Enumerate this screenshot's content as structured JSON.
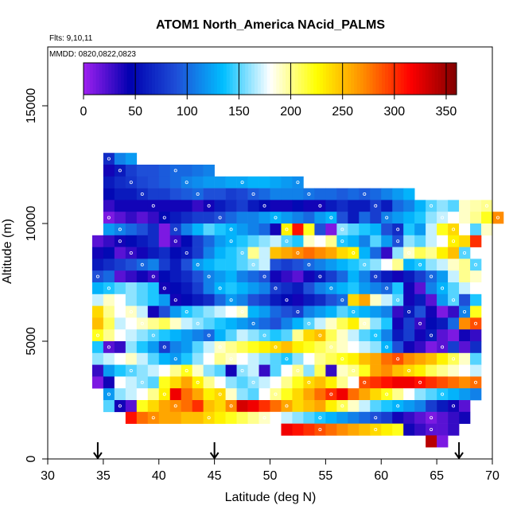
{
  "chart_data": {
    "type": "heatmap",
    "title": "ATOM1 North_America NAcid_PALMS",
    "flights_note": "Flts: 9,10,11",
    "dates_note": "MMDD: 0820,0822,0823",
    "xlabel": "Latitude (deg N)",
    "ylabel": "Altitude (m)",
    "xlim": [
      30,
      70
    ],
    "ylim": [
      0,
      17500
    ],
    "x_ticks": [
      "30",
      "35",
      "40",
      "45",
      "50",
      "55",
      "60",
      "65",
      "70"
    ],
    "y_ticks": [
      "0",
      "5000",
      "10000",
      "15000"
    ],
    "colorbar": {
      "range": [
        0,
        360
      ],
      "ticks": [
        "0",
        "50",
        "100",
        "150",
        "200",
        "250",
        "300",
        "350"
      ],
      "colors": [
        "#a020f0",
        "#0000b0",
        "#1e4fd8",
        "#00bfff",
        "#ffffff",
        "#ffff00",
        "#ff8c00",
        "#ff0000",
        "#800000"
      ]
    },
    "grid": false,
    "cell_size": {
      "lat": 1.0,
      "alt": 500
    },
    "latitude_markers": [
      34.5,
      45.0,
      67.0
    ],
    "bands": [
      {
        "alt": 12750,
        "lat_start": 35,
        "values": [
          70,
          110,
          120
        ]
      },
      {
        "alt": 12250,
        "lat_start": 35,
        "values": [
          40,
          60,
          80,
          90,
          90,
          95,
          100,
          100,
          105,
          110
        ]
      },
      {
        "alt": 11750,
        "lat_start": 35,
        "values": [
          60,
          70,
          75,
          85,
          90,
          95,
          100,
          110,
          115,
          120,
          120,
          125,
          125,
          130,
          130,
          125,
          120,
          115
        ]
      },
      {
        "alt": 11250,
        "lat_start": 35,
        "values": [
          50,
          60,
          60,
          70,
          80,
          80,
          90,
          95,
          100,
          90,
          90,
          80,
          85,
          95,
          100,
          110,
          110,
          110,
          105,
          100,
          100,
          95,
          100,
          95,
          100,
          110,
          120,
          130
        ]
      },
      {
        "alt": 10750,
        "lat_start": 35,
        "values": [
          30,
          40,
          40,
          40,
          40,
          40,
          40,
          40,
          30,
          40,
          60,
          70,
          80,
          60,
          50,
          40,
          40,
          50,
          40,
          40,
          60,
          70,
          60,
          60,
          80,
          60,
          100,
          110,
          130,
          150,
          160,
          150,
          190,
          195,
          200
        ]
      },
      {
        "alt": 10250,
        "lat_start": 35,
        "values": [
          10,
          20,
          30,
          20,
          30,
          50,
          60,
          70,
          80,
          80,
          90,
          100,
          110,
          110,
          120,
          130,
          120,
          110,
          100,
          120,
          130,
          90,
          60,
          100,
          80,
          110,
          120,
          130,
          140,
          160,
          170,
          180,
          190,
          200,
          220,
          270
        ]
      },
      {
        "alt": 9750,
        "lat_start": 35,
        "values": [
          120,
          110,
          100,
          90,
          70,
          10,
          80,
          110,
          130,
          150,
          140,
          130,
          120,
          110,
          100,
          40,
          230,
          310,
          220,
          90,
          10,
          160,
          150,
          140,
          130,
          90,
          70,
          140,
          120,
          170,
          220,
          240,
          180,
          150,
          190
        ]
      },
      {
        "alt": 9250,
        "lat_start": 34,
        "values": [
          20,
          30,
          40,
          50,
          60,
          70,
          10,
          30,
          50,
          80,
          100,
          120,
          130,
          140,
          150,
          160,
          170,
          150,
          140,
          190,
          180,
          200,
          140,
          130,
          110,
          150,
          120,
          90,
          160,
          150,
          170,
          180,
          230,
          240,
          300
        ]
      },
      {
        "alt": 8750,
        "lat_start": 34,
        "values": [
          40,
          50,
          20,
          30,
          40,
          60,
          70,
          50,
          60,
          80,
          110,
          130,
          140,
          150,
          200,
          170,
          250,
          260,
          270,
          280,
          270,
          260,
          240,
          230,
          130,
          100,
          30,
          160,
          190,
          210,
          200,
          230,
          250,
          150
        ]
      },
      {
        "alt": 8250,
        "lat_start": 34,
        "values": [
          60,
          70,
          80,
          90,
          100,
          110,
          80,
          60,
          90,
          120,
          130,
          140,
          140,
          150,
          160,
          170,
          90,
          80,
          90,
          100,
          110,
          120,
          130,
          140,
          150,
          160,
          180,
          200,
          130,
          140,
          160,
          170,
          190,
          200,
          150
        ]
      },
      {
        "alt": 7750,
        "lat_start": 34,
        "values": [
          90,
          100,
          20,
          30,
          40,
          30,
          50,
          60,
          70,
          90,
          110,
          120,
          130,
          110,
          100,
          90,
          40,
          30,
          20,
          40,
          60,
          80,
          100,
          130,
          110,
          80,
          60,
          40,
          60,
          80,
          100,
          120,
          170,
          200,
          190
        ]
      },
      {
        "alt": 7250,
        "lat_start": 34,
        "values": [
          130,
          140,
          150,
          160,
          150,
          140,
          40,
          50,
          60,
          80,
          110,
          130,
          140,
          130,
          120,
          110,
          80,
          70,
          60,
          90,
          110,
          120,
          130,
          140,
          120,
          110,
          100,
          140,
          40,
          20,
          110,
          130,
          150,
          170,
          180
        ]
      },
      {
        "alt": 6750,
        "lat_start": 34,
        "values": [
          170,
          190,
          180,
          160,
          150,
          140,
          120,
          40,
          50,
          60,
          70,
          100,
          120,
          110,
          90,
          80,
          60,
          50,
          40,
          60,
          70,
          90,
          100,
          240,
          260,
          190,
          170,
          150,
          40,
          60,
          20,
          120,
          150,
          90,
          140
        ]
      },
      {
        "alt": 6250,
        "lat_start": 34,
        "values": [
          240,
          200,
          180,
          190,
          170,
          40,
          90,
          120,
          140,
          150,
          160,
          170,
          180,
          190,
          130,
          120,
          100,
          90,
          80,
          110,
          120,
          130,
          150,
          140,
          130,
          120,
          110,
          30,
          60,
          90,
          40,
          10,
          30,
          110,
          220
        ]
      },
      {
        "alt": 5750,
        "lat_start": 34,
        "values": [
          250,
          210,
          170,
          180,
          190,
          200,
          210,
          190,
          170,
          160,
          150,
          140,
          130,
          120,
          110,
          100,
          90,
          110,
          130,
          150,
          170,
          190,
          210,
          230,
          190,
          160,
          140,
          40,
          80,
          30,
          50,
          60,
          100,
          270,
          290
        ]
      },
      {
        "alt": 5250,
        "lat_start": 34,
        "values": [
          220,
          200,
          180,
          170,
          160,
          150,
          140,
          130,
          120,
          110,
          100,
          130,
          150,
          170,
          160,
          150,
          140,
          150,
          200,
          240,
          250,
          210,
          190,
          170,
          150,
          140,
          110,
          60,
          80,
          40,
          60,
          20,
          10,
          40,
          30
        ]
      },
      {
        "alt": 4750,
        "lat_start": 34,
        "values": [
          140,
          20,
          30,
          160,
          140,
          120,
          80,
          110,
          120,
          150,
          170,
          190,
          200,
          210,
          220,
          230,
          240,
          250,
          230,
          220,
          210,
          200,
          190,
          180,
          170,
          160,
          130,
          90,
          40,
          30,
          10,
          20,
          80,
          20,
          70
        ]
      },
      {
        "alt": 4250,
        "lat_start": 34,
        "values": [
          160,
          170,
          180,
          190,
          170,
          150,
          130,
          120,
          140,
          160,
          180,
          200,
          190,
          180,
          170,
          160,
          150,
          140,
          160,
          180,
          200,
          210,
          220,
          230,
          250,
          260,
          280,
          290,
          270,
          260,
          250,
          230,
          210,
          190,
          150
        ]
      },
      {
        "alt": 3750,
        "lat_start": 34,
        "values": [
          30,
          120,
          140,
          150,
          160,
          170,
          180,
          200,
          220,
          190,
          160,
          150,
          40,
          160,
          170,
          30,
          150,
          180,
          200,
          160,
          210,
          30,
          190,
          200,
          220,
          260,
          270,
          250,
          240,
          230,
          210,
          200,
          190,
          180,
          170
        ]
      },
      {
        "alt": 3250,
        "lat_start": 34,
        "values": [
          10,
          40,
          180,
          170,
          160,
          150,
          220,
          240,
          260,
          230,
          200,
          180,
          160,
          150,
          160,
          170,
          180,
          200,
          220,
          240,
          250,
          230,
          200,
          180,
          290,
          300,
          310,
          320,
          320,
          310,
          300,
          290,
          280,
          270,
          280
        ]
      },
      {
        "alt": 2750,
        "lat_start": 35,
        "values": [
          120,
          160,
          170,
          180,
          200,
          230,
          320,
          280,
          260,
          230,
          240,
          190,
          160,
          150,
          180,
          200,
          220,
          240,
          260,
          280,
          300,
          320,
          280,
          260,
          240,
          220,
          200,
          180,
          160,
          150,
          140,
          130,
          120,
          110
        ]
      },
      {
        "alt": 2250,
        "lat_start": 35,
        "values": [
          150,
          40,
          20,
          220,
          240,
          260,
          270,
          280,
          300,
          250,
          240,
          270,
          330,
          320,
          300,
          280,
          260,
          240,
          250,
          260,
          230,
          210,
          190,
          170,
          150,
          140,
          130,
          120,
          110,
          80,
          60,
          40,
          20
        ]
      },
      {
        "alt": 1750,
        "lat_start": 37,
        "values": [
          310,
          280,
          270,
          260,
          260,
          250,
          250,
          240,
          230,
          220,
          210,
          200,
          190,
          180,
          170,
          160,
          150,
          140,
          130,
          120,
          110,
          100,
          90,
          80,
          40,
          30,
          20,
          10,
          20,
          30,
          40
        ]
      },
      {
        "alt": 1250,
        "lat_start": 51,
        "values": [
          320,
          310,
          300,
          290,
          280,
          270,
          260,
          250,
          240,
          230,
          220,
          40,
          30,
          20,
          20,
          30
        ]
      },
      {
        "alt": 750,
        "lat_start": 64,
        "values": [
          340,
          10
        ]
      }
    ]
  }
}
